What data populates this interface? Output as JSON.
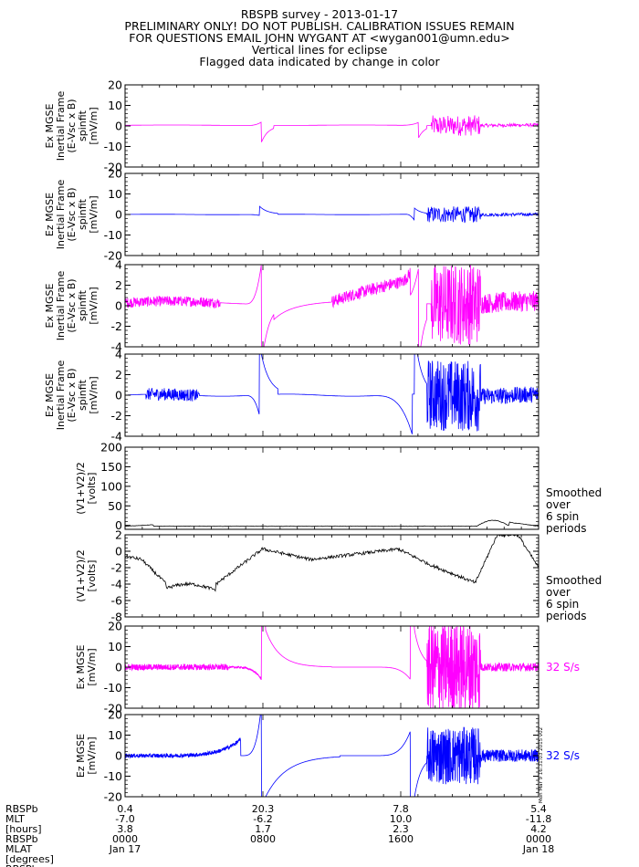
{
  "header": {
    "lines": [
      "RBSPB survey - 2013-01-17",
      "PRELIMINARY ONLY! DO NOT PUBLISH. CALIBRATION ISSUES REMAIN",
      "FOR QUESTIONS EMAIL JOHN WYGANT AT <wygan001@umn.edu>",
      "Vertical lines for eclipse",
      "Flagged data indicated by change in color"
    ]
  },
  "colors": {
    "magenta": "#ff00ff",
    "blue": "#0000ff",
    "black": "#000000"
  },
  "chart_data": [
    {
      "type": "line",
      "panel": 1,
      "ylabel": [
        "Ex MGSE",
        "Inertial Frame",
        "(E-Vsc x B)",
        "spinfit",
        "[mV/m]"
      ],
      "ylim": [
        -20,
        20
      ],
      "yticks": [
        20,
        10,
        0,
        -10,
        -20
      ],
      "color": "magenta",
      "right_label": []
    },
    {
      "type": "line",
      "panel": 2,
      "ylabel": [
        "Ez MGSE",
        "Inertial Frame",
        "(E-Vsc x B)",
        "spinfit",
        "[mV/m]"
      ],
      "ylim": [
        -20,
        20
      ],
      "yticks": [
        20,
        10,
        0,
        -10,
        -20
      ],
      "color": "blue",
      "right_label": []
    },
    {
      "type": "line",
      "panel": 3,
      "ylabel": [
        "Ex MGSE",
        "Inertial Frame",
        "(E-Vsc x B)",
        "spinfit",
        "[mV/m]"
      ],
      "ylim": [
        -4,
        4
      ],
      "yticks": [
        4,
        2,
        0,
        -2,
        -4
      ],
      "color": "magenta",
      "right_label": []
    },
    {
      "type": "line",
      "panel": 4,
      "ylabel": [
        "Ez MGSE",
        "Inertial Frame",
        "(E-Vsc x B)",
        "spinfit",
        "[mV/m]"
      ],
      "ylim": [
        -4,
        4
      ],
      "yticks": [
        4,
        2,
        0,
        -2,
        -4
      ],
      "color": "blue",
      "right_label": []
    },
    {
      "type": "line",
      "panel": 5,
      "ylabel": [
        "(V1+V2)/2",
        "[volts]"
      ],
      "ylim": [
        -10,
        200
      ],
      "yticks": [
        200,
        150,
        100,
        50,
        0
      ],
      "color": "black",
      "right_label": [
        "Smoothed",
        "over",
        "6 spin",
        "periods"
      ]
    },
    {
      "type": "line",
      "panel": 6,
      "ylabel": [
        "(V1+V2)/2",
        "[volts]"
      ],
      "ylim": [
        -8,
        2
      ],
      "yticks": [
        2,
        0,
        -2,
        -4,
        -6,
        -8
      ],
      "color": "black",
      "right_label": [
        "Smoothed",
        "over",
        "6 spin",
        "periods"
      ]
    },
    {
      "type": "line",
      "panel": 7,
      "ylabel": [
        "Ex MGSE",
        "[mV/m]"
      ],
      "ylim": [
        -20,
        20
      ],
      "yticks": [
        20,
        10,
        0,
        -10,
        -20
      ],
      "color": "magenta",
      "right_label": [
        "32 S/s"
      ]
    },
    {
      "type": "line",
      "panel": 8,
      "ylabel": [
        "Ez MGSE",
        "[mV/m]"
      ],
      "ylim": [
        -20,
        20
      ],
      "yticks": [
        20,
        10,
        0,
        -10,
        -20
      ],
      "color": "blue",
      "right_label": [
        "32 S/s"
      ]
    }
  ],
  "x_axis": {
    "ticks": [
      {
        "time": "0000",
        "rbspb": "0.4",
        "mlt": "-7.0",
        "hours": "3.8",
        "date": "Jan 17"
      },
      {
        "time": "0800",
        "rbspb": "20.3",
        "mlt": "-6.2",
        "hours": "1.7",
        "date": ""
      },
      {
        "time": "1600",
        "rbspb": "7.8",
        "mlt": "10.0",
        "hours": "2.3",
        "date": ""
      },
      {
        "time": "0000",
        "rbspb": "5.4",
        "mlt": "-11.8",
        "hours": "4.2",
        "date": "Jan 18"
      }
    ],
    "row_labels": [
      "RBSPb",
      "MLT",
      "[hours]",
      "RBSPb",
      "MLAT",
      "[degrees]",
      "RBSPb"
    ]
  },
  "stamp": "Mon Mar 9 16:31:03 2015 v02"
}
